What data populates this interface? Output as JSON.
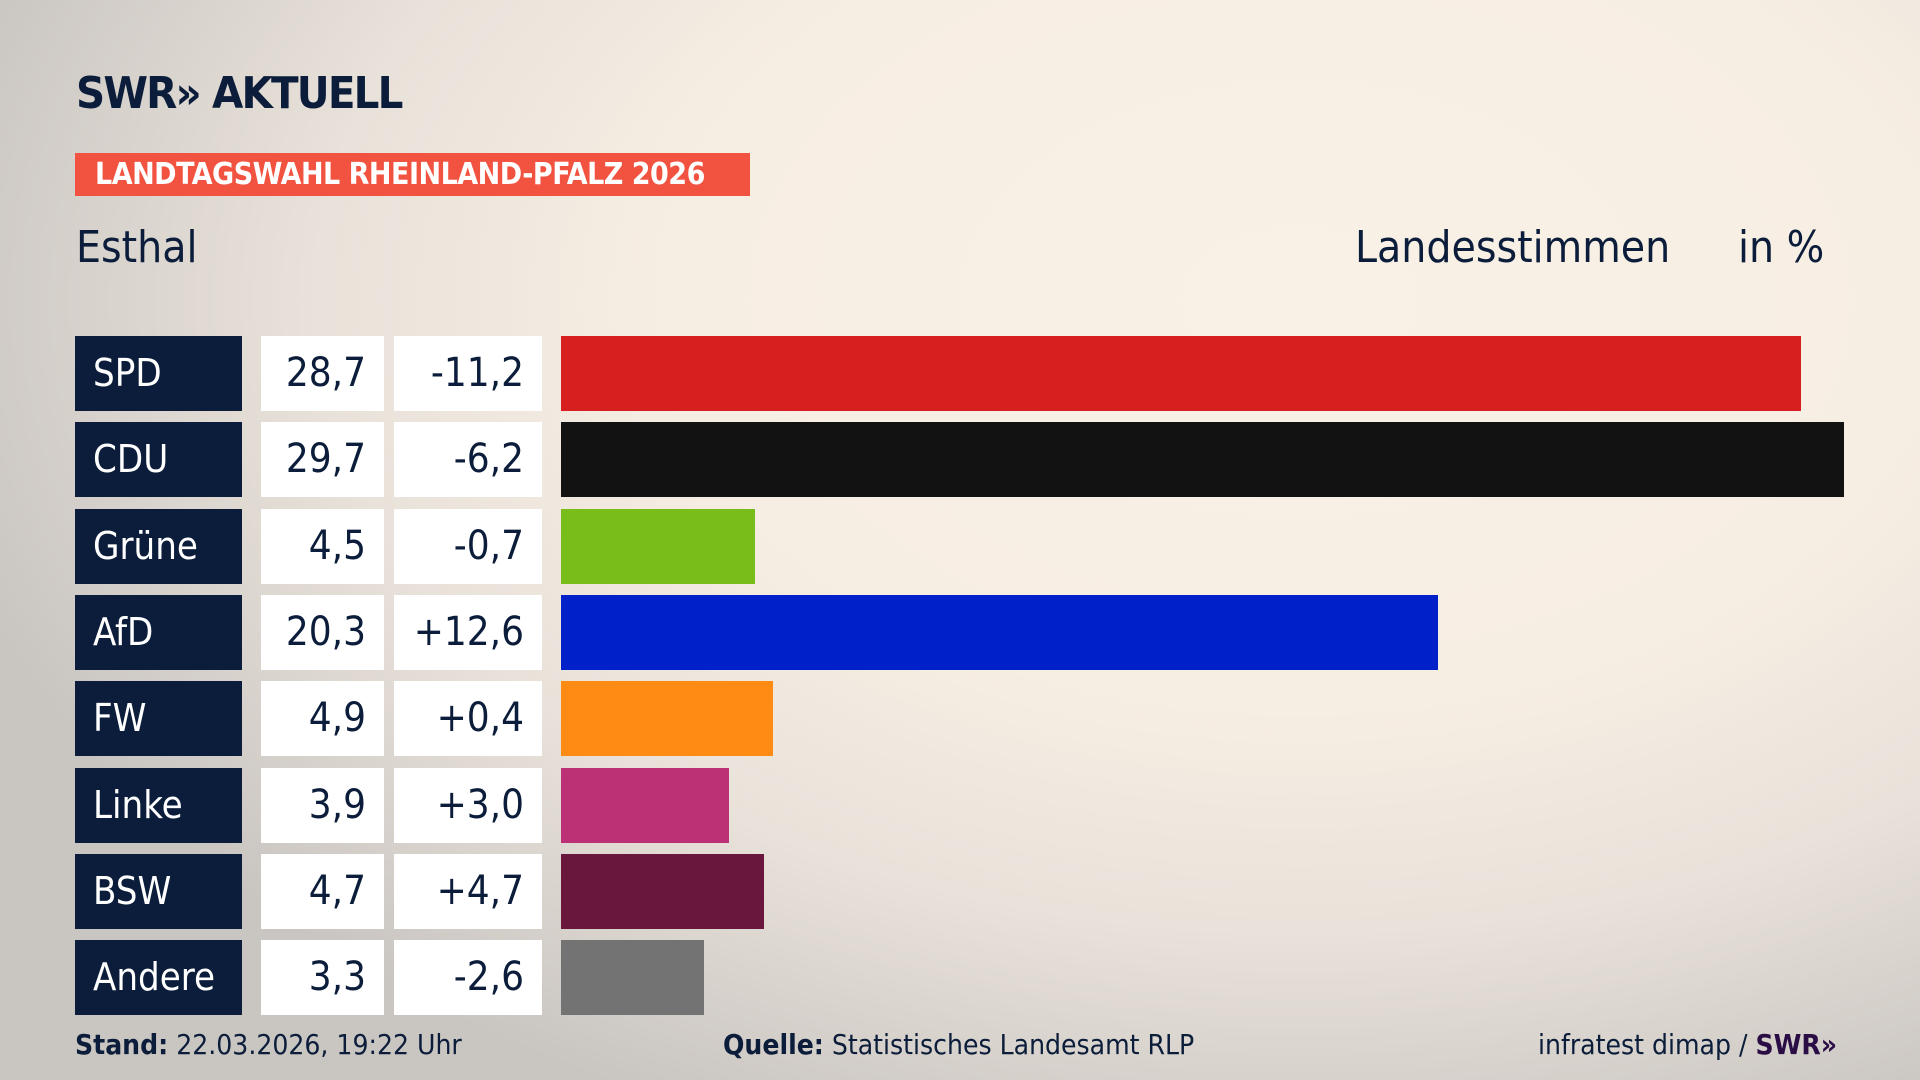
{
  "header": {
    "logo": "SWR» AKTUELL",
    "banner": "LANDTAGSWAHL RHEINLAND-PFALZ 2026",
    "place": "Esthal",
    "label": "Landesstimmen",
    "unit": "in %"
  },
  "colors": {
    "banner": "#f25340",
    "party_label_bg": "#0b1d3a"
  },
  "chart_data": {
    "type": "bar",
    "orientation": "horizontal",
    "categories": [
      "SPD",
      "CDU",
      "Grüne",
      "AfD",
      "FW",
      "Linke",
      "BSW",
      "Andere"
    ],
    "series": [
      {
        "values": [
          28.7,
          29.7,
          4.5,
          20.3,
          4.9,
          3.9,
          4.7,
          3.3
        ]
      }
    ],
    "value_labels": [
      "28,7",
      "29,7",
      "4,5",
      "20,3",
      "4,9",
      "3,9",
      "4,7",
      "3,3"
    ],
    "diff_labels": [
      "-11,2",
      "-6,2",
      "-0,7",
      "+12,6",
      "+0,4",
      "+3,0",
      "+4,7",
      "-2,6"
    ],
    "diffs": [
      -11.2,
      -6.2,
      -0.7,
      12.6,
      0.4,
      3.0,
      4.7,
      -2.6
    ],
    "bar_colors": [
      "#d71f20",
      "#121212",
      "#79bd1b",
      "#0021c9",
      "#fe8c14",
      "#bc3175",
      "#6a173d",
      "#737373"
    ],
    "title": "Landesstimmen",
    "unit": "in %",
    "grid": false
  },
  "footer": {
    "stand_label": "Stand:",
    "stand_value": "22.03.2026, 19:22 Uhr",
    "quelle_label": "Quelle:",
    "quelle_value": "Statistisches Landesamt RLP",
    "credit": "infratest dimap /",
    "credit_logo": "SWR»"
  }
}
